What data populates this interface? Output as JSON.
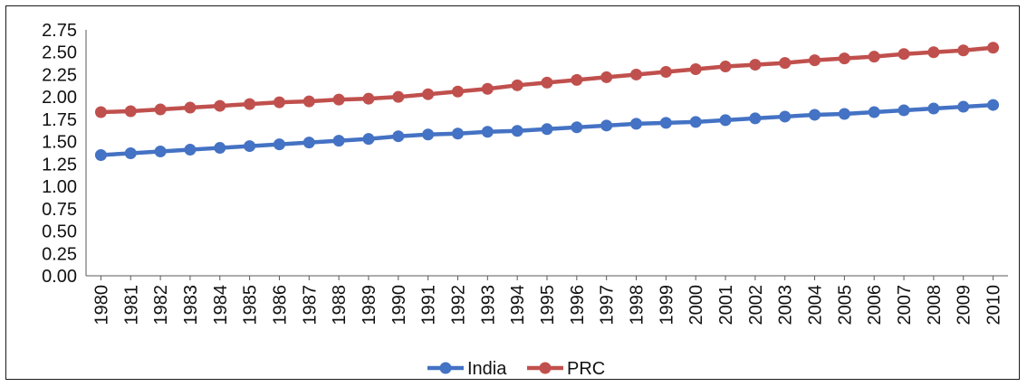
{
  "chart_data": {
    "type": "line",
    "title": "",
    "xlabel": "",
    "ylabel": "",
    "ylim": [
      0,
      2.75
    ],
    "y_ticks": [
      "0.00",
      "0.25",
      "0.50",
      "0.75",
      "1.00",
      "1.25",
      "1.50",
      "1.75",
      "2.00",
      "2.25",
      "2.50",
      "2.75"
    ],
    "categories": [
      "1980",
      "1981",
      "1982",
      "1983",
      "1984",
      "1985",
      "1986",
      "1987",
      "1988",
      "1989",
      "1990",
      "1991",
      "1992",
      "1993",
      "1994",
      "1995",
      "1996",
      "1997",
      "1998",
      "1999",
      "2000",
      "2001",
      "2002",
      "2003",
      "2004",
      "2005",
      "2006",
      "2007",
      "2008",
      "2009",
      "2010"
    ],
    "grid": false,
    "legend_position": "bottom",
    "series": [
      {
        "name": "India",
        "color": "#4472C4",
        "values": [
          1.35,
          1.37,
          1.39,
          1.41,
          1.43,
          1.45,
          1.47,
          1.49,
          1.51,
          1.53,
          1.56,
          1.58,
          1.59,
          1.61,
          1.62,
          1.64,
          1.66,
          1.68,
          1.7,
          1.71,
          1.72,
          1.74,
          1.76,
          1.78,
          1.8,
          1.81,
          1.83,
          1.85,
          1.87,
          1.89,
          1.91
        ]
      },
      {
        "name": "PRC",
        "color": "#C0504D",
        "values": [
          1.83,
          1.84,
          1.86,
          1.88,
          1.9,
          1.92,
          1.94,
          1.95,
          1.97,
          1.98,
          2.0,
          2.03,
          2.06,
          2.09,
          2.13,
          2.16,
          2.19,
          2.22,
          2.25,
          2.28,
          2.31,
          2.34,
          2.36,
          2.38,
          2.41,
          2.43,
          2.45,
          2.48,
          2.5,
          2.52,
          2.55
        ]
      }
    ]
  }
}
